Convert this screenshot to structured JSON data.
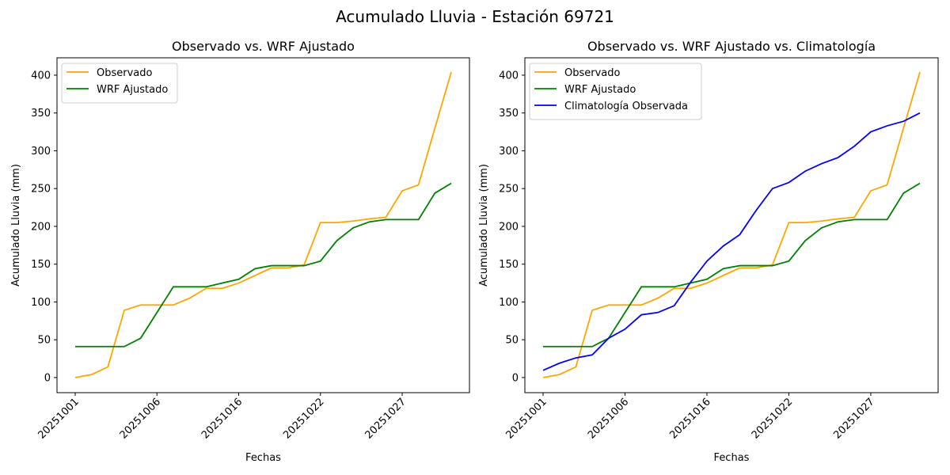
{
  "suptitle": "Acumulado Lluvia - Estación 69721",
  "chart_data": [
    {
      "type": "line",
      "title": "Observado vs. WRF Ajustado",
      "xlabel": "Fechas",
      "ylabel": "Acumulado Lluvia (mm)",
      "xtick_labels": [
        "20251001",
        "20251006",
        "20251016",
        "20251022",
        "20251027"
      ],
      "xtick_indices": [
        0,
        5,
        10,
        15,
        20
      ],
      "ylim": [
        -20,
        423
      ],
      "yticks": [
        0,
        50,
        100,
        150,
        200,
        250,
        300,
        350,
        400
      ],
      "legend": "upper-left",
      "grid": false,
      "series": [
        {
          "name": "Observado",
          "color": "#ffa500",
          "values": [
            0,
            4,
            14,
            89,
            96,
            96,
            96,
            105,
            118,
            118,
            125,
            135,
            145,
            145,
            149,
            205,
            205,
            207,
            210,
            212,
            247,
            255,
            330,
            404
          ]
        },
        {
          "name": "WRF Ajustado",
          "color": "#008000",
          "values": [
            41,
            41,
            41,
            41,
            52,
            86,
            120,
            120,
            120,
            125,
            130,
            144,
            148,
            148,
            148,
            154,
            181,
            198,
            206,
            209,
            209,
            209,
            244,
            257
          ]
        }
      ]
    },
    {
      "type": "line",
      "title": "Observado vs. WRF Ajustado vs. Climatología",
      "xlabel": "Fechas",
      "ylabel": "Acumulado Lluvia (mm)",
      "xtick_labels": [
        "20251001",
        "20251006",
        "20251016",
        "20251022",
        "20251027"
      ],
      "xtick_indices": [
        0,
        5,
        10,
        15,
        20
      ],
      "ylim": [
        -20,
        423
      ],
      "yticks": [
        0,
        50,
        100,
        150,
        200,
        250,
        300,
        350,
        400
      ],
      "legend": "upper-left",
      "grid": false,
      "series": [
        {
          "name": "Observado",
          "color": "#ffa500",
          "values": [
            0,
            4,
            14,
            89,
            96,
            96,
            96,
            105,
            118,
            118,
            125,
            135,
            145,
            145,
            149,
            205,
            205,
            207,
            210,
            212,
            247,
            255,
            330,
            404
          ]
        },
        {
          "name": "WRF Ajustado",
          "color": "#008000",
          "values": [
            41,
            41,
            41,
            41,
            52,
            86,
            120,
            120,
            120,
            125,
            130,
            144,
            148,
            148,
            148,
            154,
            181,
            198,
            206,
            209,
            209,
            209,
            244,
            257
          ]
        },
        {
          "name": "Climatología Observada",
          "color": "#0000ff",
          "values": [
            9.5,
            19,
            26,
            30,
            52,
            64,
            83,
            86,
            95,
            126,
            154,
            174,
            189,
            221,
            250,
            258,
            273,
            283,
            291,
            306,
            325,
            333,
            339,
            350
          ]
        }
      ]
    }
  ]
}
